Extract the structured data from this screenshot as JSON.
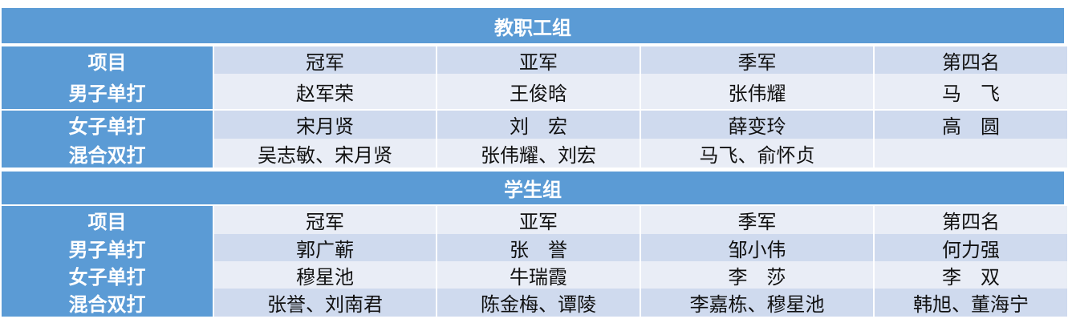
{
  "groups": [
    {
      "title": "教职工组",
      "header": [
        "项目",
        "冠军",
        "亚军",
        "季军",
        "第四名"
      ],
      "rows": [
        [
          "男子单打",
          "赵军荣",
          "王俊晗",
          "张伟耀",
          "马　飞"
        ],
        [
          "女子单打",
          "宋月贤",
          "刘　宏",
          "薛变玲",
          "高　圆"
        ],
        [
          "混合双打",
          "吴志敏、宋月贤",
          "张伟耀、刘宏",
          "马飞、俞怀贞",
          ""
        ]
      ]
    },
    {
      "title": "学生组",
      "header": [
        "项目",
        "冠军",
        "亚军",
        "季军",
        "第四名"
      ],
      "rows": [
        [
          "男子单打",
          "郭广蕲",
          "张　誉",
          "邹小伟",
          "何力强"
        ],
        [
          "女子单打",
          "穆星池",
          "牛瑞霞",
          "李　莎",
          "李　双"
        ],
        [
          "混合双打",
          "张誉、刘南君",
          "陈金梅、谭陵",
          "李嘉栋、穆星池",
          "韩旭、董海宁"
        ]
      ]
    }
  ],
  "colors": {
    "label_bg": "#5b9bd5",
    "row_dark": "#cfdaee",
    "row_light": "#e9edf6"
  }
}
